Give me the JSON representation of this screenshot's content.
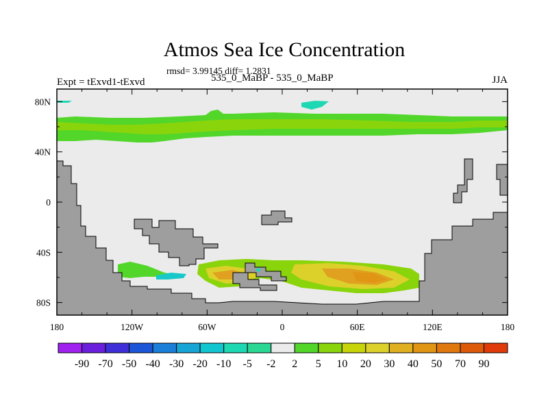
{
  "chart_data": {
    "type": "heatmap",
    "title": "Atmos Sea Ice Concentration",
    "stats_line": "rmsd= 3.99145 diff= 1.2831",
    "left_label": "Expt = tExvd1-tExvd",
    "center_label": "535_0_MaBP - 535_0_MaBP",
    "right_label": "JJA",
    "x_ticks": [
      "180",
      "120W",
      "60W",
      "0",
      "60E",
      "120E",
      "180"
    ],
    "x_tick_values": [
      -180,
      -120,
      -60,
      0,
      60,
      120,
      180
    ],
    "y_ticks": [
      "80N",
      "40N",
      "0",
      "40S",
      "80S"
    ],
    "y_tick_values": [
      80,
      40,
      0,
      -40,
      -80
    ],
    "xlim": [
      -180,
      180
    ],
    "ylim": [
      -90,
      90
    ],
    "colorbar": {
      "colors": [
        "#a020f0",
        "#6a1fdc",
        "#3f2fd8",
        "#1c55d8",
        "#1a7fd9",
        "#17a5d6",
        "#12c6cf",
        "#1ed8b4",
        "#2ad894",
        "#ebebeb",
        "#52d62a",
        "#8ad40c",
        "#c8d40a",
        "#dcd02a",
        "#e0b020",
        "#e09514",
        "#e0780e",
        "#dd5a0b",
        "#e03a0a"
      ],
      "labels": [
        "-90",
        "-70",
        "-50",
        "-40",
        "-30",
        "-20",
        "-10",
        "-5",
        "-2",
        "2",
        "5",
        "10",
        "20",
        "30",
        "40",
        "50",
        "70",
        "90"
      ]
    },
    "regions": [
      {
        "name": "arctic-band",
        "value_range": "2 to 5",
        "color": "#52d62a"
      },
      {
        "name": "arctic-core",
        "value_range": "5 to 10",
        "color": "#8ad40c"
      },
      {
        "name": "arctic-cyan-patch",
        "value_range": "-10 to -5",
        "color": "#1ed8b4"
      },
      {
        "name": "southern-ocean-band",
        "value_range": "5 to 40",
        "color": "#dcd02a"
      },
      {
        "name": "southern-ocean-max",
        "value_range": "30 to 40",
        "color": "#e0a020"
      },
      {
        "name": "southern-cyan-patch",
        "value_range": "-10 to -5",
        "color": "#17c8c8"
      }
    ],
    "background_color": "#ebebeb",
    "land_color": "#9e9e9e"
  }
}
